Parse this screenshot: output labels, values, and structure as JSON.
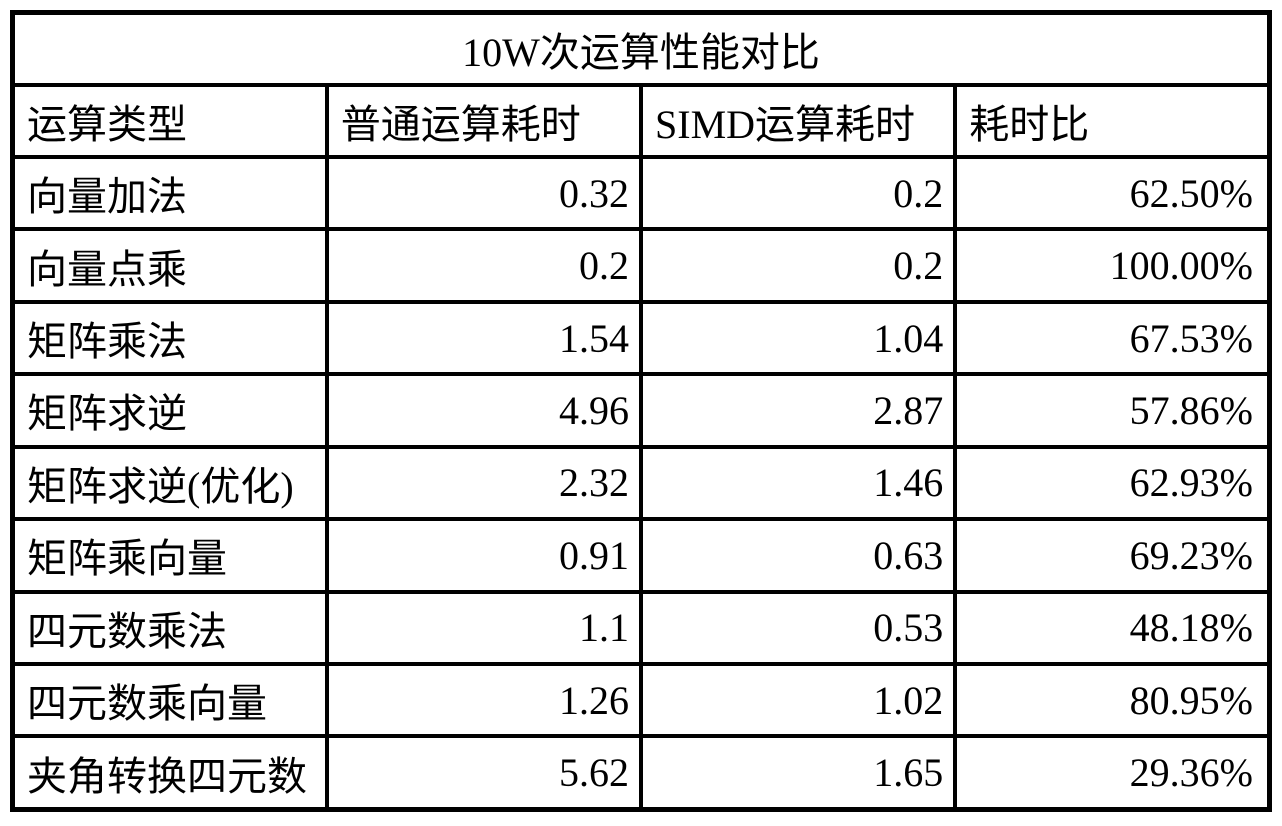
{
  "chart_data": {
    "type": "table",
    "title": "10W次运算性能对比",
    "columns": [
      "运算类型",
      "普通运算耗时",
      "SIMD运算耗时",
      "耗时比"
    ],
    "rows": [
      {
        "type": "向量加法",
        "normal": "0.32",
        "simd": "0.2",
        "ratio": "62.50%"
      },
      {
        "type": "向量点乘",
        "normal": "0.2",
        "simd": "0.2",
        "ratio": "100.00%"
      },
      {
        "type": "矩阵乘法",
        "normal": "1.54",
        "simd": "1.04",
        "ratio": "67.53%"
      },
      {
        "type": "矩阵求逆",
        "normal": "4.96",
        "simd": "2.87",
        "ratio": "57.86%"
      },
      {
        "type": "矩阵求逆(优化)",
        "normal": "2.32",
        "simd": "1.46",
        "ratio": "62.93%"
      },
      {
        "type": "矩阵乘向量",
        "normal": "0.91",
        "simd": "0.63",
        "ratio": "69.23%"
      },
      {
        "type": "四元数乘法",
        "normal": "1.1",
        "simd": "0.53",
        "ratio": "48.18%"
      },
      {
        "type": "四元数乘向量",
        "normal": "1.26",
        "simd": "1.02",
        "ratio": "80.95%"
      },
      {
        "type": "夹角转换四元数",
        "normal": "5.62",
        "simd": "1.65",
        "ratio": "29.36%"
      }
    ]
  }
}
